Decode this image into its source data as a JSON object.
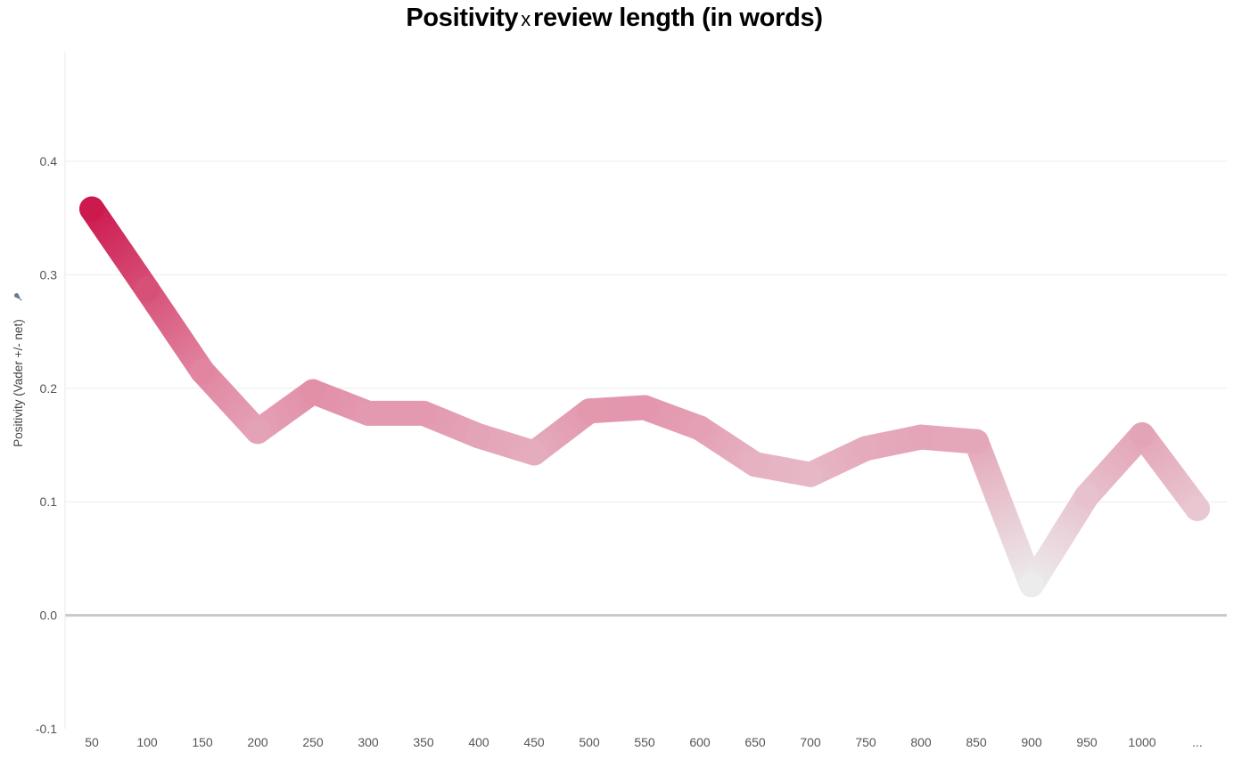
{
  "chart_data": {
    "type": "line",
    "title_part1": "Positivity",
    "title_sep": "x",
    "title_part2": "review length (in words)",
    "title": "Positivity x review length (in words)",
    "xlabel": "",
    "ylabel": "Positivity (Vader +/- net)",
    "ylabel_icon": "pin-icon",
    "ylim": [
      -0.1,
      0.4
    ],
    "yticks": [
      "0.4",
      "0.3",
      "0.2",
      "0.1",
      "0.0",
      "-0.1"
    ],
    "ytick_values": [
      0.4,
      0.3,
      0.2,
      0.1,
      0.0,
      -0.1
    ],
    "categories": [
      "50",
      "100",
      "150",
      "200",
      "250",
      "300",
      "350",
      "400",
      "450",
      "500",
      "550",
      "600",
      "650",
      "700",
      "750",
      "800",
      "850",
      "900",
      "950",
      "1000",
      "..."
    ],
    "values": [
      0.358,
      0.287,
      0.215,
      0.162,
      0.197,
      0.178,
      0.178,
      0.158,
      0.143,
      0.18,
      0.183,
      0.165,
      0.133,
      0.124,
      0.147,
      0.157,
      0.153,
      0.027,
      0.105,
      0.159,
      0.094
    ],
    "grid": true,
    "legend": "none",
    "colors": {
      "high": "#cc1a4f",
      "mid": "#e07f9c",
      "low": "#ececec"
    }
  }
}
